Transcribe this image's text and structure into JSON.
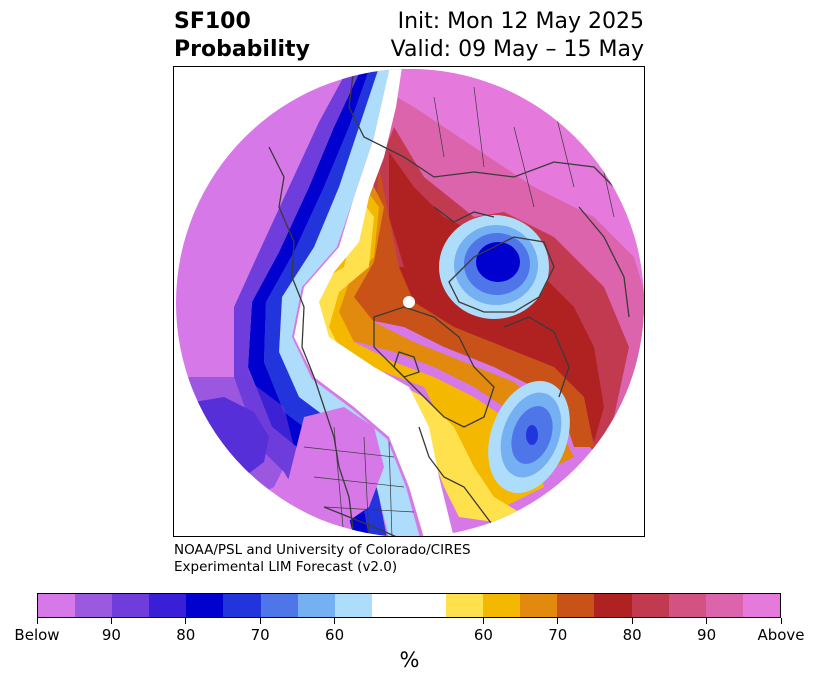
{
  "header": {
    "title_line1": "SF100",
    "title_line2": "Probability",
    "init_label": "Init: Mon 12 May 2025",
    "valid_label": "Valid: 09 May – 15 May"
  },
  "credit": {
    "line1": "NOAA/PSL and University of Colorado/CIRES",
    "line2": "Experimental LIM Forecast (v2.0)"
  },
  "colorbar": {
    "unit": "%",
    "colors": [
      "#d678e8",
      "#9b59e0",
      "#6e3ddb",
      "#3a1fd8",
      "#0000cf",
      "#2234dc",
      "#4e76e8",
      "#74b0f2",
      "#aedcfb",
      "#ffffff",
      "#ffe14d",
      "#f5b800",
      "#e28a0e",
      "#c85218",
      "#b02222",
      "#c23a50",
      "#d25382",
      "#dc64ad",
      "#e57adc"
    ],
    "tick_labels": [
      "Below",
      "90",
      "80",
      "70",
      "60",
      "60",
      "70",
      "80",
      "90",
      "Above"
    ]
  },
  "map": {
    "projection": "north-polar-stereographic",
    "colors": {
      "below_90": "#d678e8",
      "below_80": "#6e3ddb",
      "below_70": "#0000cf",
      "below_60": "#74b0f2",
      "neutral": "#ffffff",
      "above_60": "#ffe14d",
      "above_70": "#e28a0e",
      "above_80": "#b02222",
      "above_90": "#dc64ad",
      "above_max": "#e57adc",
      "coastline": "#3a3a3a"
    }
  }
}
